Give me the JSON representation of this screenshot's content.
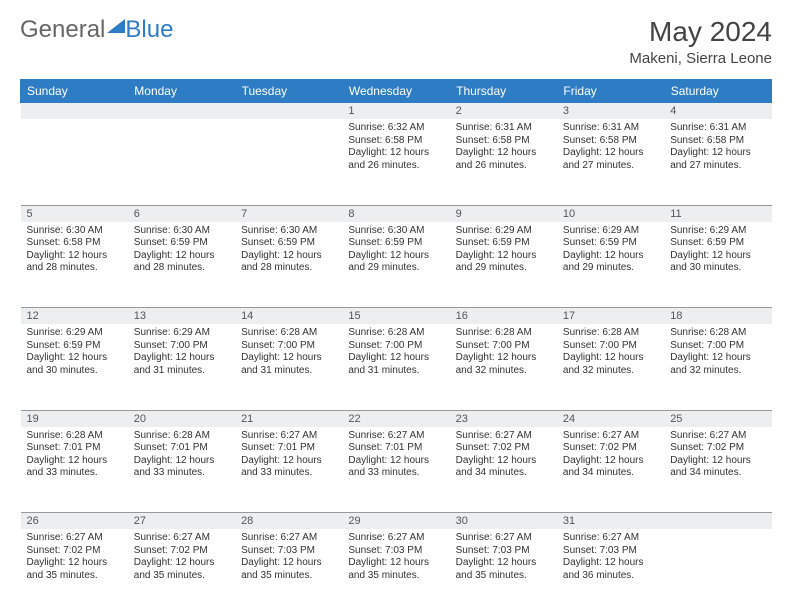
{
  "brand": {
    "prefix": "General",
    "accent": "Blue"
  },
  "title": "May 2024",
  "location": "Makeni, Sierra Leone",
  "colors": {
    "header_bg": "#2e7cc4",
    "daynum_bg": "#eceeef",
    "text": "#333333",
    "page_bg": "#ffffff"
  },
  "weekdays": [
    "Sunday",
    "Monday",
    "Tuesday",
    "Wednesday",
    "Thursday",
    "Friday",
    "Saturday"
  ],
  "weeks": [
    [
      null,
      null,
      null,
      {
        "n": "1",
        "sr": "6:32 AM",
        "ss": "6:58 PM",
        "dl": "12 hours and 26 minutes."
      },
      {
        "n": "2",
        "sr": "6:31 AM",
        "ss": "6:58 PM",
        "dl": "12 hours and 26 minutes."
      },
      {
        "n": "3",
        "sr": "6:31 AM",
        "ss": "6:58 PM",
        "dl": "12 hours and 27 minutes."
      },
      {
        "n": "4",
        "sr": "6:31 AM",
        "ss": "6:58 PM",
        "dl": "12 hours and 27 minutes."
      }
    ],
    [
      {
        "n": "5",
        "sr": "6:30 AM",
        "ss": "6:58 PM",
        "dl": "12 hours and 28 minutes."
      },
      {
        "n": "6",
        "sr": "6:30 AM",
        "ss": "6:59 PM",
        "dl": "12 hours and 28 minutes."
      },
      {
        "n": "7",
        "sr": "6:30 AM",
        "ss": "6:59 PM",
        "dl": "12 hours and 28 minutes."
      },
      {
        "n": "8",
        "sr": "6:30 AM",
        "ss": "6:59 PM",
        "dl": "12 hours and 29 minutes."
      },
      {
        "n": "9",
        "sr": "6:29 AM",
        "ss": "6:59 PM",
        "dl": "12 hours and 29 minutes."
      },
      {
        "n": "10",
        "sr": "6:29 AM",
        "ss": "6:59 PM",
        "dl": "12 hours and 29 minutes."
      },
      {
        "n": "11",
        "sr": "6:29 AM",
        "ss": "6:59 PM",
        "dl": "12 hours and 30 minutes."
      }
    ],
    [
      {
        "n": "12",
        "sr": "6:29 AM",
        "ss": "6:59 PM",
        "dl": "12 hours and 30 minutes."
      },
      {
        "n": "13",
        "sr": "6:29 AM",
        "ss": "7:00 PM",
        "dl": "12 hours and 31 minutes."
      },
      {
        "n": "14",
        "sr": "6:28 AM",
        "ss": "7:00 PM",
        "dl": "12 hours and 31 minutes."
      },
      {
        "n": "15",
        "sr": "6:28 AM",
        "ss": "7:00 PM",
        "dl": "12 hours and 31 minutes."
      },
      {
        "n": "16",
        "sr": "6:28 AM",
        "ss": "7:00 PM",
        "dl": "12 hours and 32 minutes."
      },
      {
        "n": "17",
        "sr": "6:28 AM",
        "ss": "7:00 PM",
        "dl": "12 hours and 32 minutes."
      },
      {
        "n": "18",
        "sr": "6:28 AM",
        "ss": "7:00 PM",
        "dl": "12 hours and 32 minutes."
      }
    ],
    [
      {
        "n": "19",
        "sr": "6:28 AM",
        "ss": "7:01 PM",
        "dl": "12 hours and 33 minutes."
      },
      {
        "n": "20",
        "sr": "6:28 AM",
        "ss": "7:01 PM",
        "dl": "12 hours and 33 minutes."
      },
      {
        "n": "21",
        "sr": "6:27 AM",
        "ss": "7:01 PM",
        "dl": "12 hours and 33 minutes."
      },
      {
        "n": "22",
        "sr": "6:27 AM",
        "ss": "7:01 PM",
        "dl": "12 hours and 33 minutes."
      },
      {
        "n": "23",
        "sr": "6:27 AM",
        "ss": "7:02 PM",
        "dl": "12 hours and 34 minutes."
      },
      {
        "n": "24",
        "sr": "6:27 AM",
        "ss": "7:02 PM",
        "dl": "12 hours and 34 minutes."
      },
      {
        "n": "25",
        "sr": "6:27 AM",
        "ss": "7:02 PM",
        "dl": "12 hours and 34 minutes."
      }
    ],
    [
      {
        "n": "26",
        "sr": "6:27 AM",
        "ss": "7:02 PM",
        "dl": "12 hours and 35 minutes."
      },
      {
        "n": "27",
        "sr": "6:27 AM",
        "ss": "7:02 PM",
        "dl": "12 hours and 35 minutes."
      },
      {
        "n": "28",
        "sr": "6:27 AM",
        "ss": "7:03 PM",
        "dl": "12 hours and 35 minutes."
      },
      {
        "n": "29",
        "sr": "6:27 AM",
        "ss": "7:03 PM",
        "dl": "12 hours and 35 minutes."
      },
      {
        "n": "30",
        "sr": "6:27 AM",
        "ss": "7:03 PM",
        "dl": "12 hours and 35 minutes."
      },
      {
        "n": "31",
        "sr": "6:27 AM",
        "ss": "7:03 PM",
        "dl": "12 hours and 36 minutes."
      },
      null
    ]
  ],
  "labels": {
    "sunrise": "Sunrise:",
    "sunset": "Sunset:",
    "daylight": "Daylight:"
  }
}
